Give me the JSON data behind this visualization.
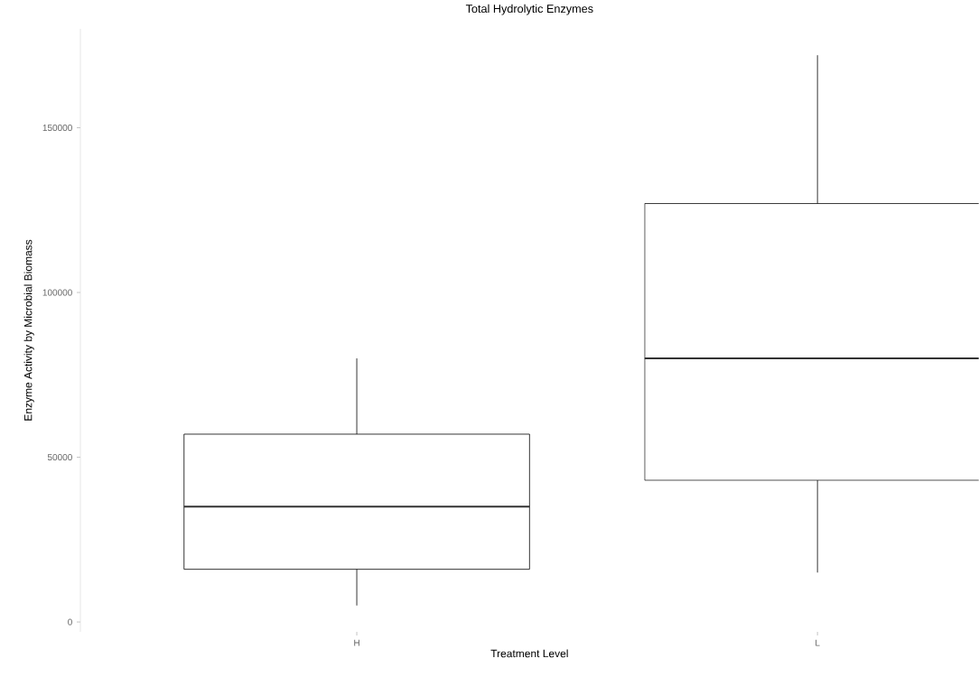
{
  "chart_data": {
    "type": "box",
    "title": "Total Hydrolytic Enzymes",
    "xlabel": "Treatment Level",
    "ylabel": "Enzyme Activity by Microbial Biomass",
    "categories": [
      "H",
      "L"
    ],
    "boxes": [
      {
        "low": 5000,
        "q1": 16000,
        "median": 35000,
        "q3": 57000,
        "high": 80000
      },
      {
        "low": 15000,
        "q1": 43000,
        "median": 80000,
        "q3": 127000,
        "high": 172000
      }
    ],
    "ylim": [
      -3000,
      180000
    ],
    "yticks": [
      0,
      50000,
      100000,
      150000
    ],
    "grid": false
  }
}
